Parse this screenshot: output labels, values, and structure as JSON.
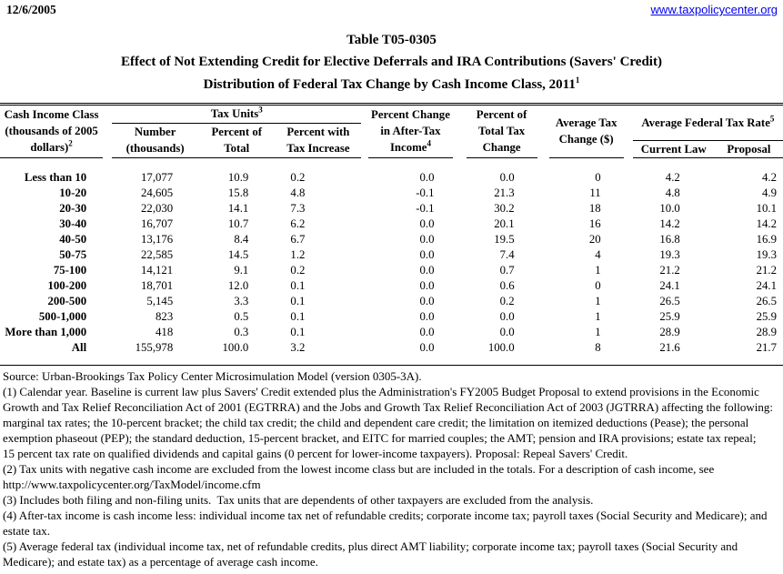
{
  "page": {
    "date": "12/6/2005",
    "site_link": "www.taxpolicycenter.org"
  },
  "title": {
    "line1": "Table T05-0305",
    "line2": "Effect of Not Extending Credit for Elective Deferrals and IRA Contributions (Savers' Credit)",
    "line3": "Distribution of Federal Tax Change by Cash Income Class, 2011",
    "line3_sup": "1"
  },
  "table": {
    "header": {
      "income_class": {
        "lines": [
          "Cash Income Class",
          "(thousands of 2005",
          "dollars)"
        ],
        "sup": "2"
      },
      "tax_units": {
        "label": "Tax Units",
        "sup": "3"
      },
      "number": {
        "lines": [
          "Number",
          "(thousands)"
        ]
      },
      "percent_of_total": {
        "lines": [
          "Percent of",
          "Total"
        ]
      },
      "percent_with_increase": {
        "lines": [
          "Percent with",
          "Tax Increase"
        ]
      },
      "percent_change_ati": {
        "lines": [
          "Percent Change",
          "in After-Tax",
          "Income"
        ],
        "sup": "4"
      },
      "percent_total_tax_change": {
        "lines": [
          "Percent of",
          "Total Tax",
          "Change"
        ]
      },
      "avg_tax_change": {
        "lines": [
          "Average Tax",
          "Change ($)"
        ]
      },
      "avg_federal_tax_rate": {
        "label": "Average Federal Tax Rate",
        "sup": "5"
      },
      "current_law": "Current Law",
      "proposal": "Proposal"
    },
    "rows": [
      {
        "label": "Less than 10",
        "values": [
          "17,077",
          "10.9",
          "0.2",
          "0.0",
          "0.0",
          "0",
          "4.2",
          "4.2"
        ]
      },
      {
        "label": "10-20",
        "values": [
          "24,605",
          "15.8",
          "4.8",
          "-0.1",
          "21.3",
          "11",
          "4.8",
          "4.9"
        ]
      },
      {
        "label": "20-30",
        "values": [
          "22,030",
          "14.1",
          "7.3",
          "-0.1",
          "30.2",
          "18",
          "10.0",
          "10.1"
        ]
      },
      {
        "label": "30-40",
        "values": [
          "16,707",
          "10.7",
          "6.2",
          "0.0",
          "20.1",
          "16",
          "14.2",
          "14.2"
        ]
      },
      {
        "label": "40-50",
        "values": [
          "13,176",
          "8.4",
          "6.7",
          "0.0",
          "19.5",
          "20",
          "16.8",
          "16.9"
        ]
      },
      {
        "label": "50-75",
        "values": [
          "22,585",
          "14.5",
          "1.2",
          "0.0",
          "7.4",
          "4",
          "19.3",
          "19.3"
        ]
      },
      {
        "label": "75-100",
        "values": [
          "14,121",
          "9.1",
          "0.2",
          "0.0",
          "0.7",
          "1",
          "21.2",
          "21.2"
        ]
      },
      {
        "label": "100-200",
        "values": [
          "18,701",
          "12.0",
          "0.1",
          "0.0",
          "0.6",
          "0",
          "24.1",
          "24.1"
        ]
      },
      {
        "label": "200-500",
        "values": [
          "5,145",
          "3.3",
          "0.1",
          "0.0",
          "0.2",
          "1",
          "26.5",
          "26.5"
        ]
      },
      {
        "label": "500-1,000",
        "values": [
          "823",
          "0.5",
          "0.1",
          "0.0",
          "0.0",
          "1",
          "25.9",
          "25.9"
        ]
      },
      {
        "label": "More than 1,000",
        "values": [
          "418",
          "0.3",
          "0.1",
          "0.0",
          "0.0",
          "1",
          "28.9",
          "28.9"
        ]
      },
      {
        "label": "All",
        "values": [
          "155,978",
          "100.0",
          "3.2",
          "0.0",
          "100.0",
          "8",
          "21.6",
          "21.7"
        ]
      }
    ]
  },
  "footnote_lines": [
    "Source: Urban-Brookings Tax Policy Center Microsimulation Model (version 0305-3A).",
    "(1) Calendar year. Baseline is current law plus Savers' Credit extended plus the Administration's FY2005 Budget Proposal to extend provisions in the Economic",
    "Growth and Tax Relief Reconciliation Act of 2001 (EGTRRA) and the Jobs and Growth Tax Relief Reconciliation Act of 2003 (JGTRRA) affecting the following:",
    "marginal tax rates; the 10-percent bracket; the child tax credit; the child and dependent care credit; the limitation on itemized deductions (Pease); the personal",
    "exemption phaseout (PEP); the standard deduction, 15-percent bracket, and EITC for married couples; the AMT; pension and IRA provisions; estate tax repeal;",
    "15 percent tax rate on qualified dividends and capital gains (0 percent for lower-income taxpayers). Proposal: Repeal Savers' Credit.",
    "(2) Tax units with negative cash income are excluded from the lowest income class but are included in the totals. For a description of cash income, see",
    "http://www.taxpolicycenter.org/TaxModel/income.cfm",
    "(3) Includes both filing and non-filing units.  Tax units that are dependents of other taxpayers are excluded from the analysis.",
    "(4) After-tax income is cash income less: individual income tax net of refundable credits; corporate income tax; payroll taxes (Social Security and Medicare); and",
    "estate tax.",
    "(5) Average federal tax (individual income tax, net of refundable credits, plus direct AMT liability; corporate income tax; payroll taxes (Social Security and",
    "Medicare); and estate tax) as a percentage of average cash income."
  ],
  "colors": {
    "link": "#0000EE",
    "text": "#000000",
    "background": "#FFFFFF"
  }
}
